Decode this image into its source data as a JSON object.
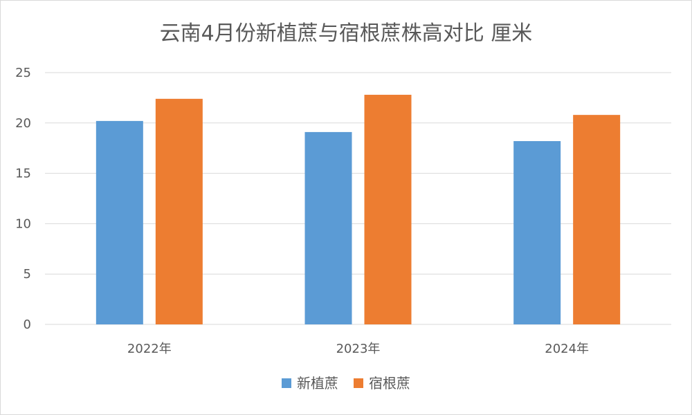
{
  "chart_data": {
    "type": "bar",
    "title": "云南4月份新植蔗与宿根蔗株高对比  厘米",
    "xlabel": "",
    "ylabel": "",
    "categories": [
      "2022年",
      "2023年",
      "2024年"
    ],
    "series": [
      {
        "name": "新植蔗",
        "color": "#5b9bd5",
        "values": [
          20.2,
          19.1,
          18.2
        ]
      },
      {
        "name": "宿根蔗",
        "color": "#ed7d31",
        "values": [
          22.4,
          22.8,
          20.8
        ]
      }
    ],
    "ylim": [
      0,
      25
    ],
    "yticks": [
      0,
      5,
      10,
      15,
      20,
      25
    ],
    "grid": true,
    "legend": "bottom"
  }
}
